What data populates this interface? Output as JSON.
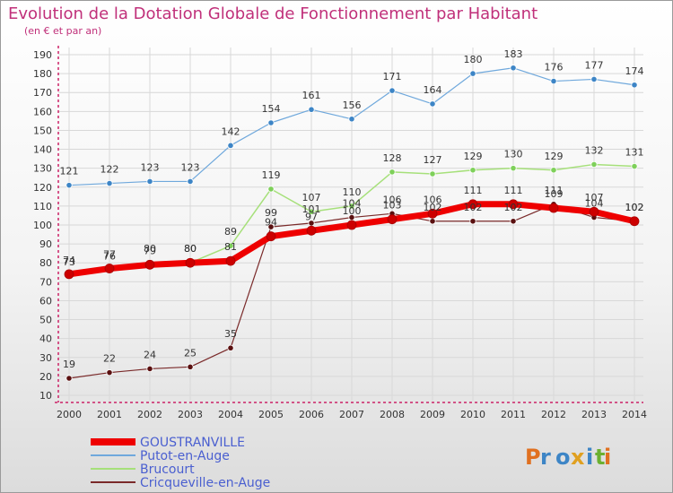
{
  "title": "Evolution de la Dotation Globale de Fonctionnement par Habitant",
  "subtitle": "(en € et par an)",
  "logo": "Proxiti",
  "colors": {
    "title": "#c0307a",
    "axis": "#cc2266",
    "grid": "#d8d8d8",
    "label": "#333333"
  },
  "chart_data": {
    "type": "line",
    "title": "Evolution de la Dotation Globale de Fonctionnement par Habitant",
    "subtitle": "(en € et par an)",
    "xlabel": "",
    "ylabel": "",
    "ylim": [
      10,
      190
    ],
    "yticks": [
      10,
      20,
      30,
      40,
      50,
      60,
      70,
      80,
      90,
      100,
      110,
      120,
      130,
      140,
      150,
      160,
      170,
      180,
      190
    ],
    "grid": true,
    "legend_position": "bottom-left",
    "x": [
      "2000",
      "2001",
      "2002",
      "2003",
      "2004",
      "2005",
      "2006",
      "2007",
      "2008",
      "2009",
      "2010",
      "2011",
      "2012",
      "2013",
      "2014"
    ],
    "series": [
      {
        "name": "Cricqueville-en-Auge",
        "color": "#7a2a2a",
        "marker": "#5a1010",
        "width": 1.2,
        "values": [
          19,
          22,
          24,
          25,
          35,
          99,
          101,
          104,
          106,
          102,
          102,
          102,
          111,
          104,
          102
        ]
      },
      {
        "name": "Brucourt",
        "color": "#a6e07a",
        "marker": "#7ed05a",
        "width": 1.5,
        "values": [
          73,
          76,
          80,
          80,
          89,
          119,
          107,
          110,
          128,
          127,
          129,
          130,
          129,
          132,
          131
        ]
      },
      {
        "name": "Putot-en-Auge",
        "color": "#6fa8dc",
        "marker": "#3d85c6",
        "width": 1.2,
        "values": [
          121,
          122,
          123,
          123,
          142,
          154,
          161,
          156,
          171,
          164,
          180,
          183,
          176,
          177,
          174
        ]
      },
      {
        "name": "GOUSTRANVILLE",
        "color": "#ee0000",
        "marker": "#cc0000",
        "width": 7,
        "values": [
          74,
          77,
          79,
          80,
          81,
          94,
          97,
          100,
          103,
          106,
          111,
          111,
          109,
          107,
          102
        ]
      }
    ],
    "legend_order": [
      "GOUSTRANVILLE",
      "Putot-en-Auge",
      "Brucourt",
      "Cricqueville-en-Auge"
    ]
  }
}
